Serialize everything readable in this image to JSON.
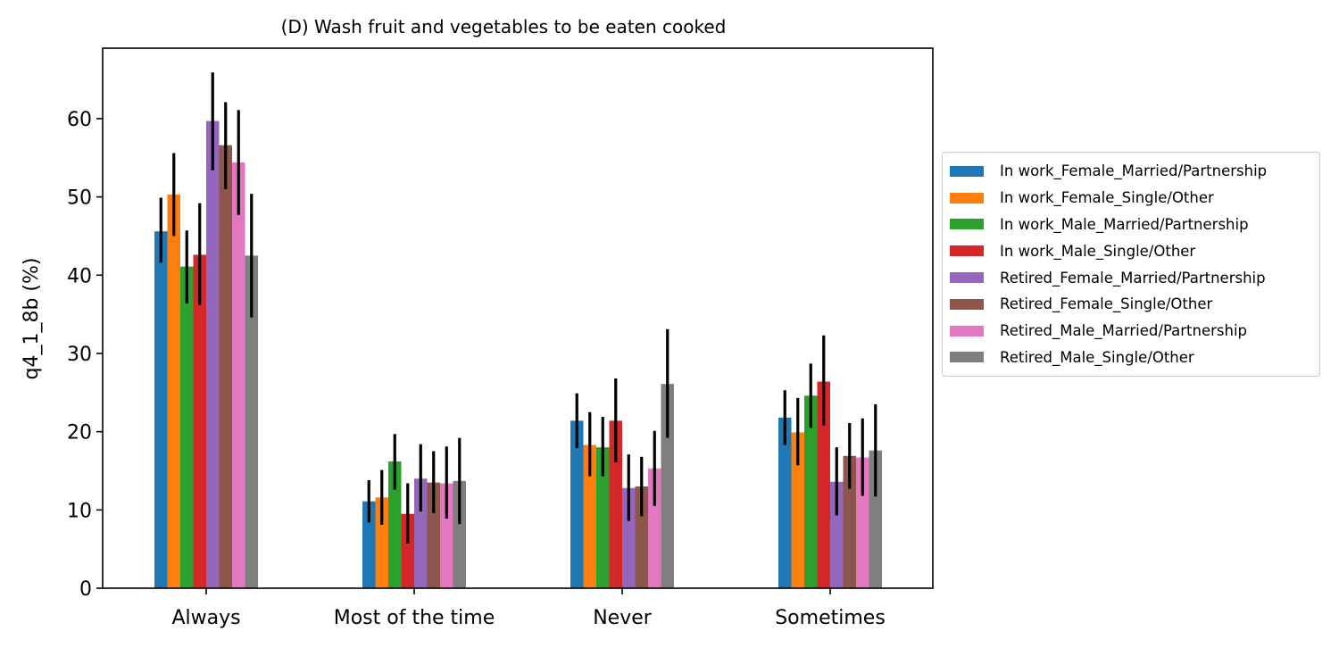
{
  "chart_data": {
    "type": "bar",
    "title": "(D) Wash fruit and vegetables to be eaten cooked",
    "xlabel": "",
    "ylabel": "q4_1_8b (%)",
    "ylim": [
      0,
      69
    ],
    "yticks": [
      0,
      10,
      20,
      30,
      40,
      50,
      60
    ],
    "categories": [
      "Always",
      "Most of the time",
      "Never",
      "Sometimes"
    ],
    "legend_position": "right",
    "grid": false,
    "series": [
      {
        "name": "In work_Female_Married/Partnership",
        "color": "#1f77b4",
        "values": [
          45.6,
          11.1,
          21.4,
          21.8
        ],
        "err_low": [
          41.6,
          8.4,
          17.9,
          18.3
        ],
        "err_high": [
          49.9,
          13.8,
          24.9,
          25.3
        ]
      },
      {
        "name": "In work_Female_Single/Other",
        "color": "#ff7f0e",
        "values": [
          50.3,
          11.6,
          18.3,
          19.9
        ],
        "err_low": [
          45.0,
          8.1,
          14.3,
          15.7
        ],
        "err_high": [
          55.6,
          15.1,
          22.5,
          24.3
        ]
      },
      {
        "name": "In work_Male_Married/Partnership",
        "color": "#2ca02c",
        "values": [
          41.1,
          16.2,
          18.0,
          24.6
        ],
        "err_low": [
          36.4,
          12.6,
          14.3,
          20.5
        ],
        "err_high": [
          45.7,
          19.7,
          21.9,
          28.7
        ]
      },
      {
        "name": "In work_Male_Single/Other",
        "color": "#d62728",
        "values": [
          42.6,
          9.5,
          21.4,
          26.4
        ],
        "err_low": [
          36.2,
          5.7,
          16.1,
          20.8
        ],
        "err_high": [
          49.2,
          13.4,
          26.8,
          32.3
        ]
      },
      {
        "name": "Retired_Female_Married/Partnership",
        "color": "#9467bd",
        "values": [
          59.7,
          14.0,
          12.8,
          13.6
        ],
        "err_low": [
          53.4,
          9.8,
          8.6,
          9.3
        ],
        "err_high": [
          65.9,
          18.4,
          17.1,
          18.0
        ]
      },
      {
        "name": "Retired_Female_Single/Other",
        "color": "#8c564b",
        "values": [
          56.6,
          13.5,
          13.0,
          16.9
        ],
        "err_low": [
          51.0,
          9.6,
          9.2,
          12.7
        ],
        "err_high": [
          62.1,
          17.5,
          16.8,
          21.1
        ]
      },
      {
        "name": "Retired_Male_Married/Partnership",
        "color": "#e377c2",
        "values": [
          54.4,
          13.4,
          15.3,
          16.7
        ],
        "err_low": [
          47.7,
          8.9,
          10.5,
          11.8
        ],
        "err_high": [
          61.1,
          18.1,
          20.1,
          21.7
        ]
      },
      {
        "name": "Retired_Male_Single/Other",
        "color": "#7f7f7f",
        "values": [
          42.5,
          13.7,
          26.1,
          17.6
        ],
        "err_low": [
          34.6,
          8.2,
          19.2,
          11.7
        ],
        "err_high": [
          50.4,
          19.2,
          33.1,
          23.5
        ]
      }
    ]
  }
}
